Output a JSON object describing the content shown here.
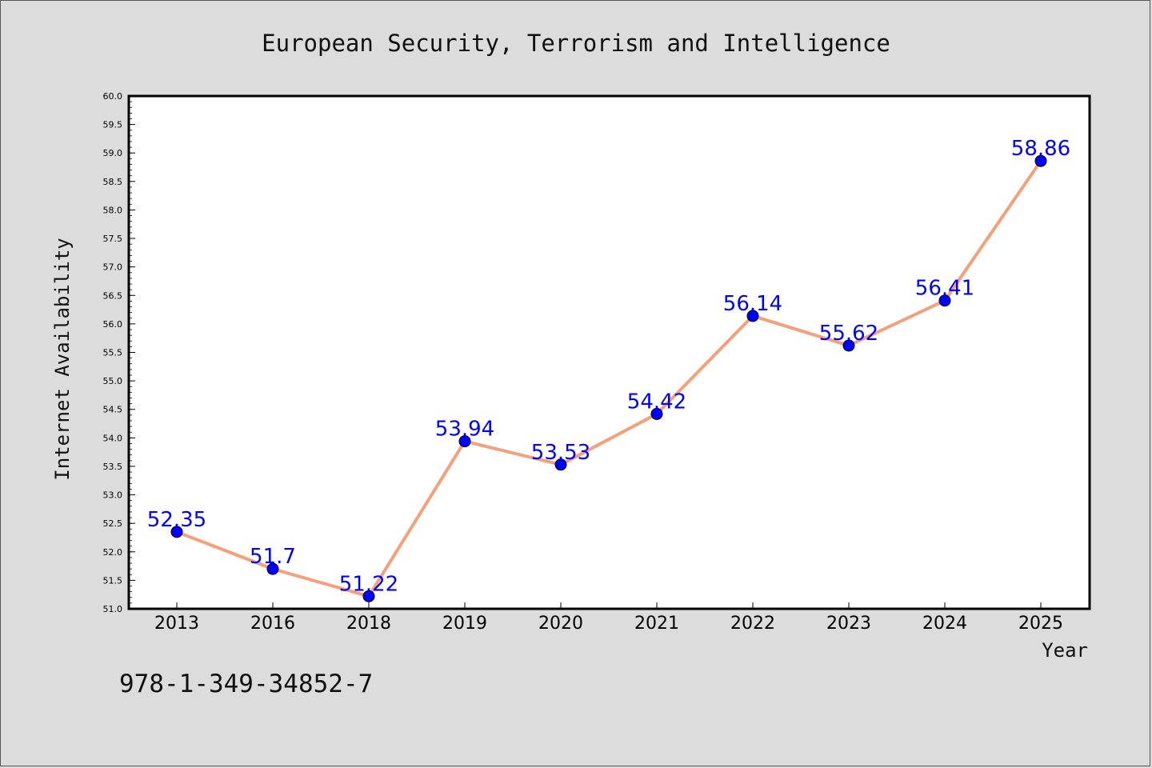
{
  "chart_data": {
    "type": "line",
    "title": "European Security, Terrorism and Intelligence",
    "xlabel": "Year",
    "ylabel": "Internet Availability",
    "categories": [
      "2013",
      "2016",
      "2018",
      "2019",
      "2020",
      "2021",
      "2022",
      "2023",
      "2024",
      "2025"
    ],
    "series": [
      {
        "values": [
          52.35,
          51.7,
          51.22,
          53.94,
          53.53,
          54.42,
          56.14,
          55.62,
          56.41,
          58.86
        ],
        "data_labels": [
          "52.35",
          "51.7",
          "51.22",
          "53.94",
          "53.53",
          "54.42",
          "56.14",
          "55.62",
          "56.41",
          "58.86"
        ],
        "line_color": "#f4a07c",
        "marker_color": "#0000ff"
      }
    ],
    "ylim": [
      51.0,
      60.0
    ],
    "yticks": [
      "51.0",
      "51.5",
      "52.0",
      "52.5",
      "53.0",
      "53.5",
      "54.0",
      "54.5",
      "55.0",
      "55.5",
      "56.0",
      "56.5",
      "57.0",
      "57.5",
      "58.0",
      "58.5",
      "59.0",
      "59.5",
      "60.0"
    ],
    "grid": false,
    "legend": "none"
  },
  "footer": {
    "text": "978-1-349-34852-7"
  },
  "colors": {
    "background": "#dcdcdc",
    "plot_background": "#ffffff",
    "label": "#0000ff"
  }
}
